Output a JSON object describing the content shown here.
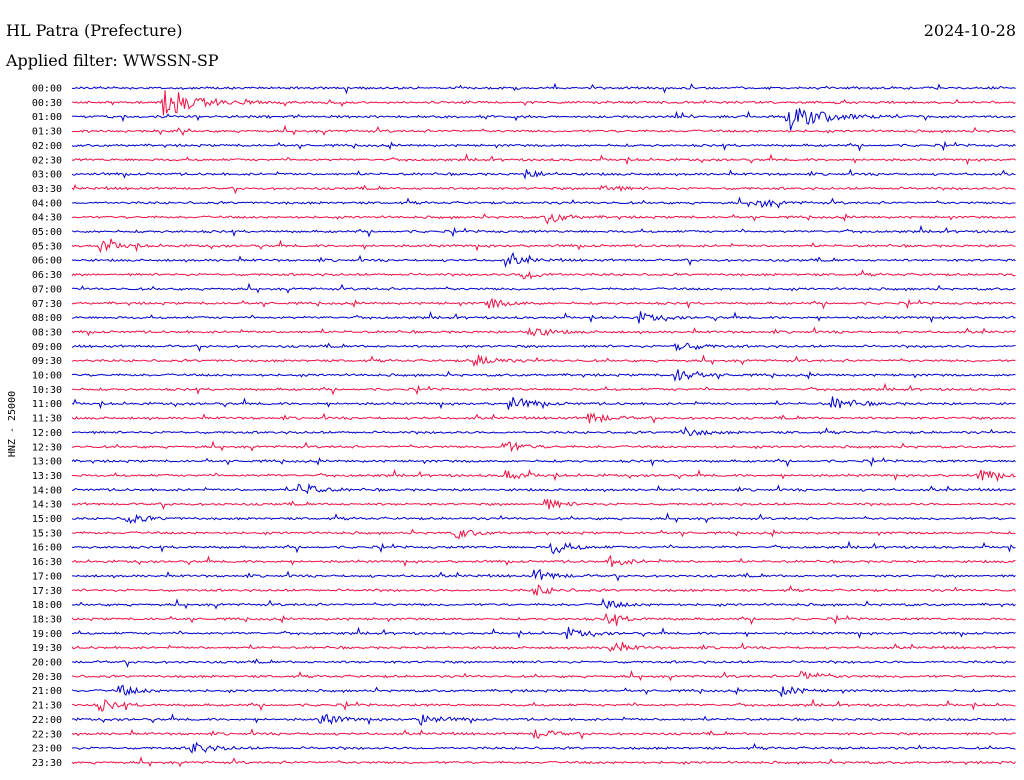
{
  "header": {
    "station": "HL Patra (Prefecture)",
    "date": "2024-10-28",
    "filter_text": "Applied filter: WWSSN-SP"
  },
  "chart_data": {
    "type": "line",
    "ylabel": "HNZ - 25000",
    "row_labels": [
      "00:00",
      "00:30",
      "01:00",
      "01:30",
      "02:00",
      "02:30",
      "03:00",
      "03:30",
      "04:00",
      "04:30",
      "05:00",
      "05:30",
      "06:00",
      "06:30",
      "07:00",
      "07:30",
      "08:00",
      "08:30",
      "09:00",
      "09:30",
      "10:00",
      "10:30",
      "11:00",
      "11:30",
      "12:00",
      "12:30",
      "13:00",
      "13:30",
      "14:00",
      "14:30",
      "15:00",
      "15:30",
      "16:00",
      "16:30",
      "17:00",
      "17:30",
      "18:00",
      "18:30",
      "19:00",
      "19:30",
      "20:00",
      "20:30",
      "21:00",
      "21:30",
      "22:00",
      "22:30",
      "23:00",
      "23:30"
    ],
    "row_duration_minutes": 30,
    "colors": {
      "even_rows": "#0000cc",
      "odd_rows": "#ee1144"
    },
    "grid": false,
    "events": [
      {
        "row": "00:30",
        "minute": 3.0,
        "amplitude": 1.0
      },
      {
        "row": "01:00",
        "minute": 22.8,
        "amplitude": 1.0
      },
      {
        "row": "03:00",
        "minute": 14.5,
        "amplitude": 0.3
      },
      {
        "row": "03:30",
        "minute": 16.8,
        "amplitude": 0.35
      },
      {
        "row": "04:00",
        "minute": 21.8,
        "amplitude": 0.35
      },
      {
        "row": "04:30",
        "minute": 15.2,
        "amplitude": 0.4
      },
      {
        "row": "05:30",
        "minute": 1.0,
        "amplitude": 0.4
      },
      {
        "row": "06:00",
        "minute": 13.9,
        "amplitude": 0.35
      },
      {
        "row": "06:30",
        "minute": 14.4,
        "amplitude": 0.35
      },
      {
        "row": "07:30",
        "minute": 13.3,
        "amplitude": 0.35
      },
      {
        "row": "08:00",
        "minute": 18.1,
        "amplitude": 0.35
      },
      {
        "row": "08:30",
        "minute": 14.6,
        "amplitude": 0.4
      },
      {
        "row": "09:00",
        "minute": 19.3,
        "amplitude": 0.4
      },
      {
        "row": "09:30",
        "minute": 12.9,
        "amplitude": 0.4
      },
      {
        "row": "10:00",
        "minute": 19.3,
        "amplitude": 0.45
      },
      {
        "row": "11:00",
        "minute": 14.0,
        "amplitude": 0.45
      },
      {
        "row": "11:00",
        "minute": 24.2,
        "amplitude": 0.5
      },
      {
        "row": "11:30",
        "minute": 16.5,
        "amplitude": 0.4
      },
      {
        "row": "12:00",
        "minute": 19.5,
        "amplitude": 0.35
      },
      {
        "row": "12:30",
        "minute": 13.8,
        "amplitude": 0.4
      },
      {
        "row": "13:30",
        "minute": 13.8,
        "amplitude": 0.35
      },
      {
        "row": "13:30",
        "minute": 28.9,
        "amplitude": 0.4
      },
      {
        "row": "14:00",
        "minute": 7.3,
        "amplitude": 0.45
      },
      {
        "row": "14:30",
        "minute": 15.1,
        "amplitude": 0.35
      },
      {
        "row": "15:00",
        "minute": 1.8,
        "amplitude": 0.35
      },
      {
        "row": "15:30",
        "minute": 12.3,
        "amplitude": 0.35
      },
      {
        "row": "16:00",
        "minute": 15.3,
        "amplitude": 0.45
      },
      {
        "row": "16:30",
        "minute": 17.2,
        "amplitude": 0.35
      },
      {
        "row": "17:00",
        "minute": 14.8,
        "amplitude": 0.4
      },
      {
        "row": "17:30",
        "minute": 14.8,
        "amplitude": 0.35
      },
      {
        "row": "18:00",
        "minute": 17.0,
        "amplitude": 0.3
      },
      {
        "row": "18:30",
        "minute": 17.1,
        "amplitude": 0.35
      },
      {
        "row": "19:00",
        "minute": 15.8,
        "amplitude": 0.35
      },
      {
        "row": "19:30",
        "minute": 17.2,
        "amplitude": 0.35
      },
      {
        "row": "20:30",
        "minute": 23.3,
        "amplitude": 0.35
      },
      {
        "row": "21:00",
        "minute": 1.6,
        "amplitude": 0.35
      },
      {
        "row": "21:00",
        "minute": 22.6,
        "amplitude": 0.35
      },
      {
        "row": "21:30",
        "minute": 1.0,
        "amplitude": 0.35
      },
      {
        "row": "22:00",
        "minute": 8.0,
        "amplitude": 0.4
      },
      {
        "row": "22:00",
        "minute": 11.2,
        "amplitude": 0.35
      },
      {
        "row": "22:30",
        "minute": 14.8,
        "amplitude": 0.35
      },
      {
        "row": "23:00",
        "minute": 3.9,
        "amplitude": 0.45
      }
    ]
  }
}
